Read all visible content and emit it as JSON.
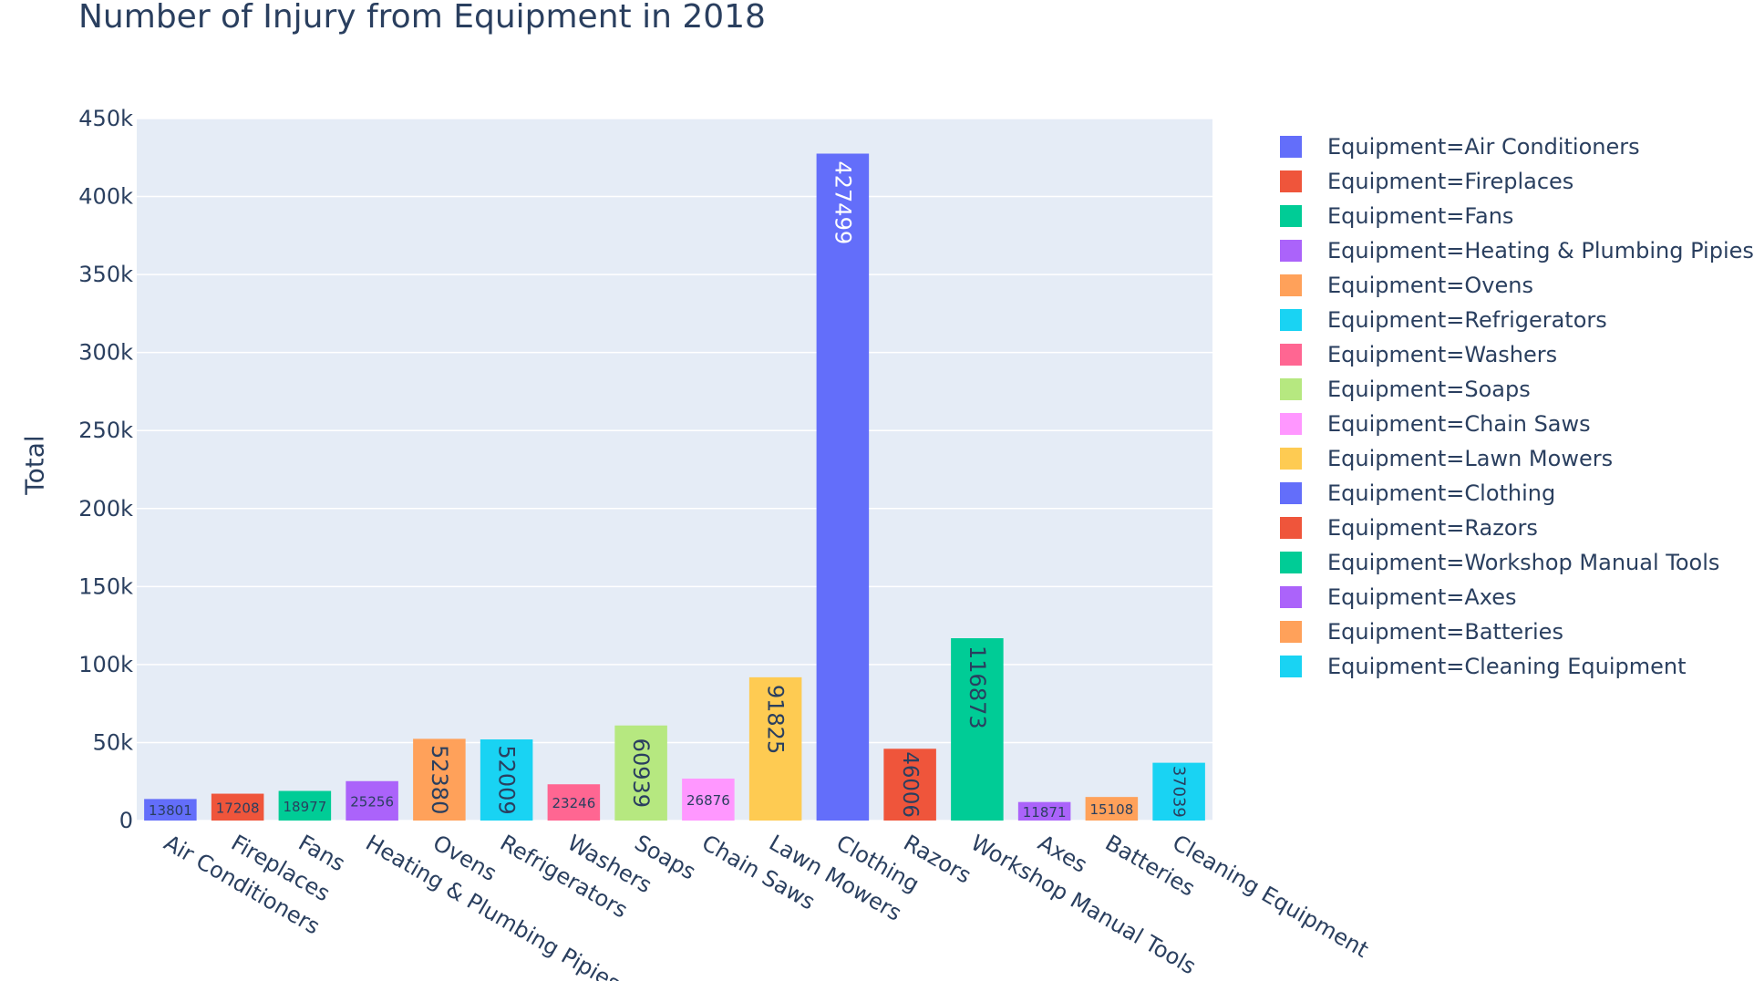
{
  "chart_data": {
    "type": "bar",
    "title": "Number of Injury from Equipment in 2018",
    "xlabel": "",
    "ylabel": "Total",
    "ylim": [
      0,
      450000
    ],
    "y_ticks": [
      0,
      50000,
      100000,
      150000,
      200000,
      250000,
      300000,
      350000,
      400000,
      450000
    ],
    "y_tick_labels": [
      "0",
      "50k",
      "100k",
      "150k",
      "200k",
      "250k",
      "300k",
      "350k",
      "400k",
      "450k"
    ],
    "grid": true,
    "legend_position": "right",
    "legend_prefix": "Equipment=",
    "categories": [
      "Air Conditioners",
      "Fireplaces",
      "Fans",
      "Heating & Plumbing Pipies",
      "Ovens",
      "Refrigerators",
      "Washers",
      "Soaps",
      "Chain Saws",
      "Lawn Mowers",
      "Clothing",
      "Razors",
      "Workshop Manual Tools",
      "Axes",
      "Batteries",
      "Cleaning Equipment"
    ],
    "values": [
      13801,
      17208,
      18977,
      25256,
      52380,
      52009,
      23246,
      60939,
      26876,
      91825,
      427499,
      46006,
      116873,
      11871,
      15108,
      37039
    ],
    "colors": [
      "#636efa",
      "#EF553B",
      "#00cc96",
      "#ab63fa",
      "#FFA15A",
      "#19d3f3",
      "#FF6692",
      "#B6E880",
      "#FF97FF",
      "#FECB52",
      "#636efa",
      "#EF553B",
      "#00cc96",
      "#ab63fa",
      "#FFA15A",
      "#19d3f3"
    ],
    "plot_background": "#e5ecf6"
  }
}
